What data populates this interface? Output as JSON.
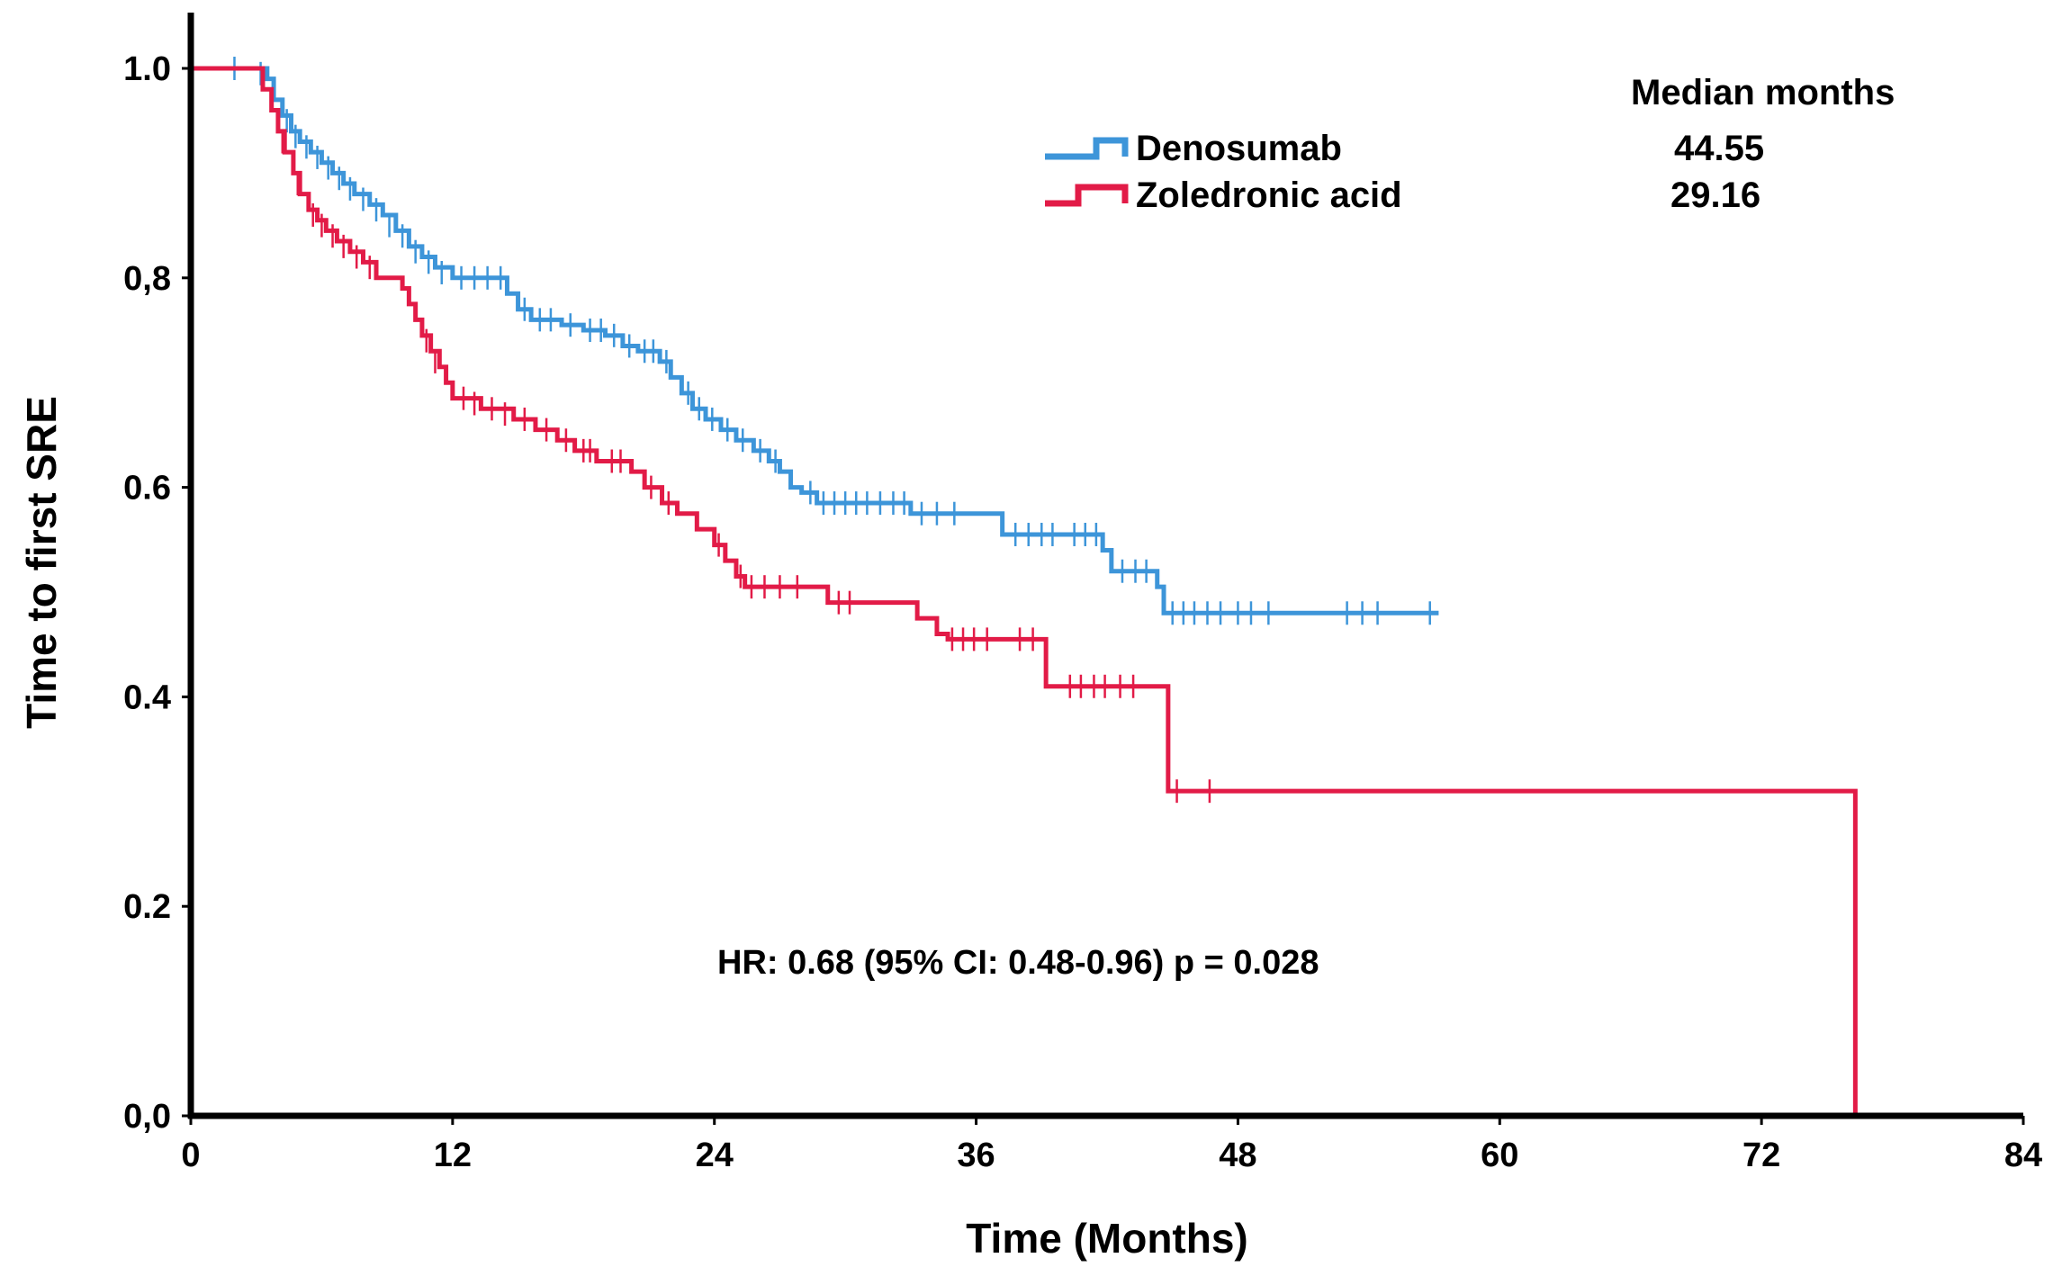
{
  "chart_data": {
    "type": "line",
    "subtype": "kaplan-meier",
    "xlabel": "Time (Months)",
    "ylabel": "Time to first SRE",
    "xlim": [
      0,
      84
    ],
    "ylim": [
      0,
      1.0
    ],
    "x_ticks": [
      0,
      12,
      24,
      36,
      48,
      60,
      72,
      84
    ],
    "x_tick_labels": [
      "0",
      "12",
      "24",
      "36",
      "48",
      "60",
      "72",
      "84"
    ],
    "y_ticks": [
      0,
      0.2,
      0.4,
      0.6,
      0.8,
      1.0
    ],
    "y_tick_labels": [
      "0,0",
      "0.2",
      "0.4",
      "0.6",
      "0,8",
      "1.0"
    ],
    "grid": false,
    "legend_position": "top-right",
    "median_header": "Median months",
    "annotation": "HR: 0.68 (95% CI: 0.48-0.96) p = 0.028",
    "series": [
      {
        "name": "Denosumab",
        "color": "#3d95d9",
        "median": "44.55",
        "steps": [
          [
            0,
            1.0
          ],
          [
            3.5,
            0.99
          ],
          [
            3.8,
            0.97
          ],
          [
            4.2,
            0.955
          ],
          [
            4.6,
            0.94
          ],
          [
            5.0,
            0.93
          ],
          [
            5.5,
            0.92
          ],
          [
            6.0,
            0.91
          ],
          [
            6.5,
            0.9
          ],
          [
            7.0,
            0.89
          ],
          [
            7.5,
            0.88
          ],
          [
            8.2,
            0.87
          ],
          [
            8.8,
            0.86
          ],
          [
            9.4,
            0.845
          ],
          [
            10.0,
            0.83
          ],
          [
            10.6,
            0.82
          ],
          [
            11.2,
            0.81
          ],
          [
            12.0,
            0.8
          ],
          [
            14.5,
            0.785
          ],
          [
            15.0,
            0.77
          ],
          [
            15.6,
            0.76
          ],
          [
            17.0,
            0.755
          ],
          [
            18.0,
            0.75
          ],
          [
            19.0,
            0.745
          ],
          [
            19.8,
            0.735
          ],
          [
            20.5,
            0.73
          ],
          [
            21.5,
            0.72
          ],
          [
            22.0,
            0.705
          ],
          [
            22.5,
            0.69
          ],
          [
            23.0,
            0.675
          ],
          [
            23.6,
            0.665
          ],
          [
            24.3,
            0.655
          ],
          [
            25.0,
            0.645
          ],
          [
            25.8,
            0.635
          ],
          [
            26.5,
            0.625
          ],
          [
            27.0,
            0.615
          ],
          [
            27.5,
            0.6
          ],
          [
            28.0,
            0.595
          ],
          [
            28.7,
            0.585
          ],
          [
            33.0,
            0.575
          ],
          [
            37.2,
            0.555
          ],
          [
            41.8,
            0.54
          ],
          [
            42.2,
            0.52
          ],
          [
            44.3,
            0.505
          ],
          [
            44.6,
            0.48
          ]
        ],
        "end_x": 57.2,
        "censored": [
          [
            2.0,
            1.0
          ],
          [
            3.2,
            0.995
          ],
          [
            4.4,
            0.95
          ],
          [
            4.8,
            0.935
          ],
          [
            5.3,
            0.925
          ],
          [
            5.8,
            0.915
          ],
          [
            6.3,
            0.905
          ],
          [
            6.8,
            0.895
          ],
          [
            7.3,
            0.885
          ],
          [
            7.9,
            0.875
          ],
          [
            8.5,
            0.865
          ],
          [
            9.1,
            0.85
          ],
          [
            9.7,
            0.84
          ],
          [
            10.3,
            0.825
          ],
          [
            10.9,
            0.815
          ],
          [
            11.5,
            0.805
          ],
          [
            12.4,
            0.8
          ],
          [
            13.0,
            0.8
          ],
          [
            13.6,
            0.8
          ],
          [
            14.2,
            0.8
          ],
          [
            15.3,
            0.77
          ],
          [
            16.0,
            0.76
          ],
          [
            16.5,
            0.76
          ],
          [
            17.4,
            0.755
          ],
          [
            18.3,
            0.75
          ],
          [
            18.8,
            0.75
          ],
          [
            19.4,
            0.745
          ],
          [
            20.1,
            0.735
          ],
          [
            20.8,
            0.73
          ],
          [
            21.2,
            0.73
          ],
          [
            21.8,
            0.72
          ],
          [
            22.8,
            0.69
          ],
          [
            23.3,
            0.675
          ],
          [
            23.9,
            0.665
          ],
          [
            24.6,
            0.655
          ],
          [
            25.3,
            0.645
          ],
          [
            26.1,
            0.635
          ],
          [
            26.8,
            0.625
          ],
          [
            28.4,
            0.595
          ],
          [
            29.0,
            0.585
          ],
          [
            29.5,
            0.585
          ],
          [
            30.0,
            0.585
          ],
          [
            30.5,
            0.585
          ],
          [
            31.0,
            0.585
          ],
          [
            31.6,
            0.585
          ],
          [
            32.2,
            0.585
          ],
          [
            32.7,
            0.585
          ],
          [
            33.5,
            0.575
          ],
          [
            34.2,
            0.575
          ],
          [
            35.0,
            0.575
          ],
          [
            37.8,
            0.555
          ],
          [
            38.4,
            0.555
          ],
          [
            39.0,
            0.555
          ],
          [
            39.5,
            0.555
          ],
          [
            40.5,
            0.555
          ],
          [
            41.0,
            0.555
          ],
          [
            41.5,
            0.555
          ],
          [
            42.7,
            0.52
          ],
          [
            43.3,
            0.52
          ],
          [
            43.8,
            0.52
          ],
          [
            45.0,
            0.48
          ],
          [
            45.5,
            0.48
          ],
          [
            46.0,
            0.48
          ],
          [
            46.6,
            0.48
          ],
          [
            47.2,
            0.48
          ],
          [
            48.0,
            0.48
          ],
          [
            48.6,
            0.48
          ],
          [
            49.4,
            0.48
          ],
          [
            53.0,
            0.48
          ],
          [
            53.7,
            0.48
          ],
          [
            54.4,
            0.48
          ],
          [
            56.8,
            0.48
          ]
        ]
      },
      {
        "name": "Zoledronic acid",
        "color": "#e21b47",
        "median": "29.16",
        "steps": [
          [
            0,
            1.0
          ],
          [
            3.3,
            0.98
          ],
          [
            3.7,
            0.96
          ],
          [
            4.0,
            0.94
          ],
          [
            4.3,
            0.92
          ],
          [
            4.7,
            0.9
          ],
          [
            5.0,
            0.88
          ],
          [
            5.4,
            0.865
          ],
          [
            5.8,
            0.855
          ],
          [
            6.2,
            0.845
          ],
          [
            6.7,
            0.835
          ],
          [
            7.3,
            0.825
          ],
          [
            7.9,
            0.815
          ],
          [
            8.5,
            0.8
          ],
          [
            9.7,
            0.79
          ],
          [
            10.0,
            0.775
          ],
          [
            10.3,
            0.76
          ],
          [
            10.6,
            0.745
          ],
          [
            11.0,
            0.73
          ],
          [
            11.4,
            0.715
          ],
          [
            11.7,
            0.7
          ],
          [
            12.0,
            0.685
          ],
          [
            13.3,
            0.675
          ],
          [
            14.8,
            0.665
          ],
          [
            15.8,
            0.655
          ],
          [
            16.8,
            0.645
          ],
          [
            17.6,
            0.635
          ],
          [
            18.6,
            0.625
          ],
          [
            20.2,
            0.615
          ],
          [
            20.8,
            0.6
          ],
          [
            21.6,
            0.585
          ],
          [
            22.3,
            0.575
          ],
          [
            23.2,
            0.56
          ],
          [
            24.0,
            0.545
          ],
          [
            24.5,
            0.53
          ],
          [
            25.0,
            0.515
          ],
          [
            25.4,
            0.505
          ],
          [
            29.2,
            0.49
          ],
          [
            33.3,
            0.475
          ],
          [
            34.2,
            0.46
          ],
          [
            34.7,
            0.455
          ],
          [
            39.2,
            0.41
          ],
          [
            44.8,
            0.31
          ],
          [
            76.3,
            0.0
          ]
        ],
        "end_x": 76.3,
        "censored": [
          [
            4.2,
            0.93
          ],
          [
            4.9,
            0.89
          ],
          [
            5.6,
            0.86
          ],
          [
            6.0,
            0.85
          ],
          [
            6.5,
            0.84
          ],
          [
            7.0,
            0.83
          ],
          [
            7.6,
            0.82
          ],
          [
            8.2,
            0.81
          ],
          [
            10.8,
            0.74
          ],
          [
            11.2,
            0.72
          ],
          [
            12.5,
            0.685
          ],
          [
            13.0,
            0.68
          ],
          [
            13.8,
            0.675
          ],
          [
            14.4,
            0.67
          ],
          [
            15.3,
            0.665
          ],
          [
            16.3,
            0.655
          ],
          [
            17.2,
            0.645
          ],
          [
            18.0,
            0.635
          ],
          [
            18.3,
            0.635
          ],
          [
            19.3,
            0.625
          ],
          [
            19.7,
            0.625
          ],
          [
            21.1,
            0.6
          ],
          [
            21.9,
            0.585
          ],
          [
            24.2,
            0.545
          ],
          [
            25.2,
            0.515
          ],
          [
            25.7,
            0.505
          ],
          [
            26.3,
            0.505
          ],
          [
            27.0,
            0.505
          ],
          [
            27.8,
            0.505
          ],
          [
            29.7,
            0.49
          ],
          [
            30.2,
            0.49
          ],
          [
            34.9,
            0.455
          ],
          [
            35.4,
            0.455
          ],
          [
            35.9,
            0.455
          ],
          [
            36.5,
            0.455
          ],
          [
            38.0,
            0.455
          ],
          [
            38.6,
            0.455
          ],
          [
            40.3,
            0.41
          ],
          [
            40.8,
            0.41
          ],
          [
            41.4,
            0.41
          ],
          [
            41.9,
            0.41
          ],
          [
            42.6,
            0.41
          ],
          [
            43.2,
            0.41
          ],
          [
            45.2,
            0.31
          ],
          [
            46.7,
            0.31
          ]
        ]
      }
    ]
  }
}
